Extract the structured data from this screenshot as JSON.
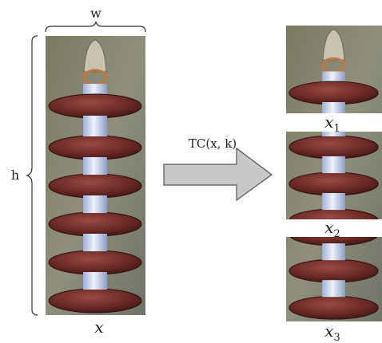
{
  "original": {
    "width_label": "w",
    "height_label": "h",
    "caption": "x"
  },
  "arrow": {
    "label": "TC(x, k)"
  },
  "crops": [
    {
      "caption": "x",
      "subscript": "1"
    },
    {
      "caption": "x",
      "subscript": "2"
    },
    {
      "caption": "x",
      "subscript": "3"
    }
  ]
}
